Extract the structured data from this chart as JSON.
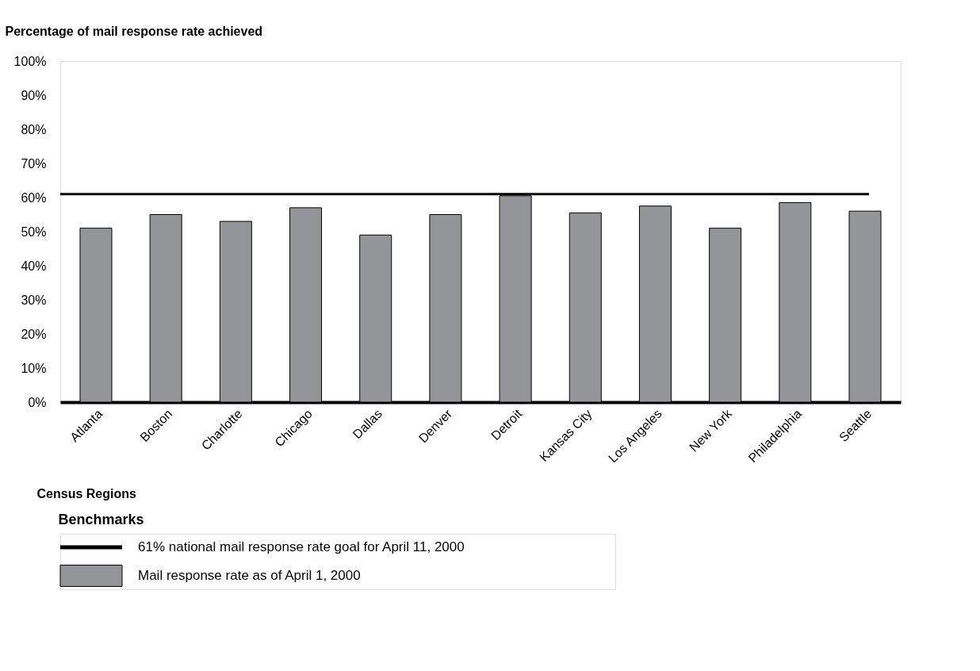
{
  "chart_data": {
    "type": "bar",
    "ylabel": "Percentage of mail response rate achieved",
    "xlabel": "Census Regions",
    "legend_title": "Benchmarks",
    "legend": "bottom",
    "categories": [
      "Atlanta",
      "Boston",
      "Charlotte",
      "Chicago",
      "Dallas",
      "Denver",
      "Detroit",
      "Kansas City",
      "Los Angeles",
      "New York",
      "Philadelphia",
      "Seattle"
    ],
    "series": [
      {
        "name": "Mail response rate as of April 1, 2000",
        "color": "#939598",
        "values": [
          51,
          55,
          53,
          57,
          49,
          55,
          60.5,
          55.5,
          57.5,
          51,
          58.5,
          56
        ]
      }
    ],
    "ylim": [
      0,
      100
    ],
    "yticks": [
      {
        "value": 0,
        "label": "0%"
      },
      {
        "value": 10,
        "label": "10%"
      },
      {
        "value": 20,
        "label": "20%"
      },
      {
        "value": 30,
        "label": "30%"
      },
      {
        "value": 40,
        "label": "40%"
      },
      {
        "value": 50,
        "label": "50%"
      },
      {
        "value": 60,
        "label": "60%"
      },
      {
        "value": 70,
        "label": "70%"
      },
      {
        "value": 80,
        "label": "80%"
      },
      {
        "value": 90,
        "label": "90%"
      },
      {
        "value": 100,
        "label": "100%"
      }
    ],
    "ref_lines": [
      {
        "axis": "y",
        "value": 61,
        "label": "61% national mail response rate goal for April 11, 2000",
        "color": "#000000"
      }
    ]
  }
}
